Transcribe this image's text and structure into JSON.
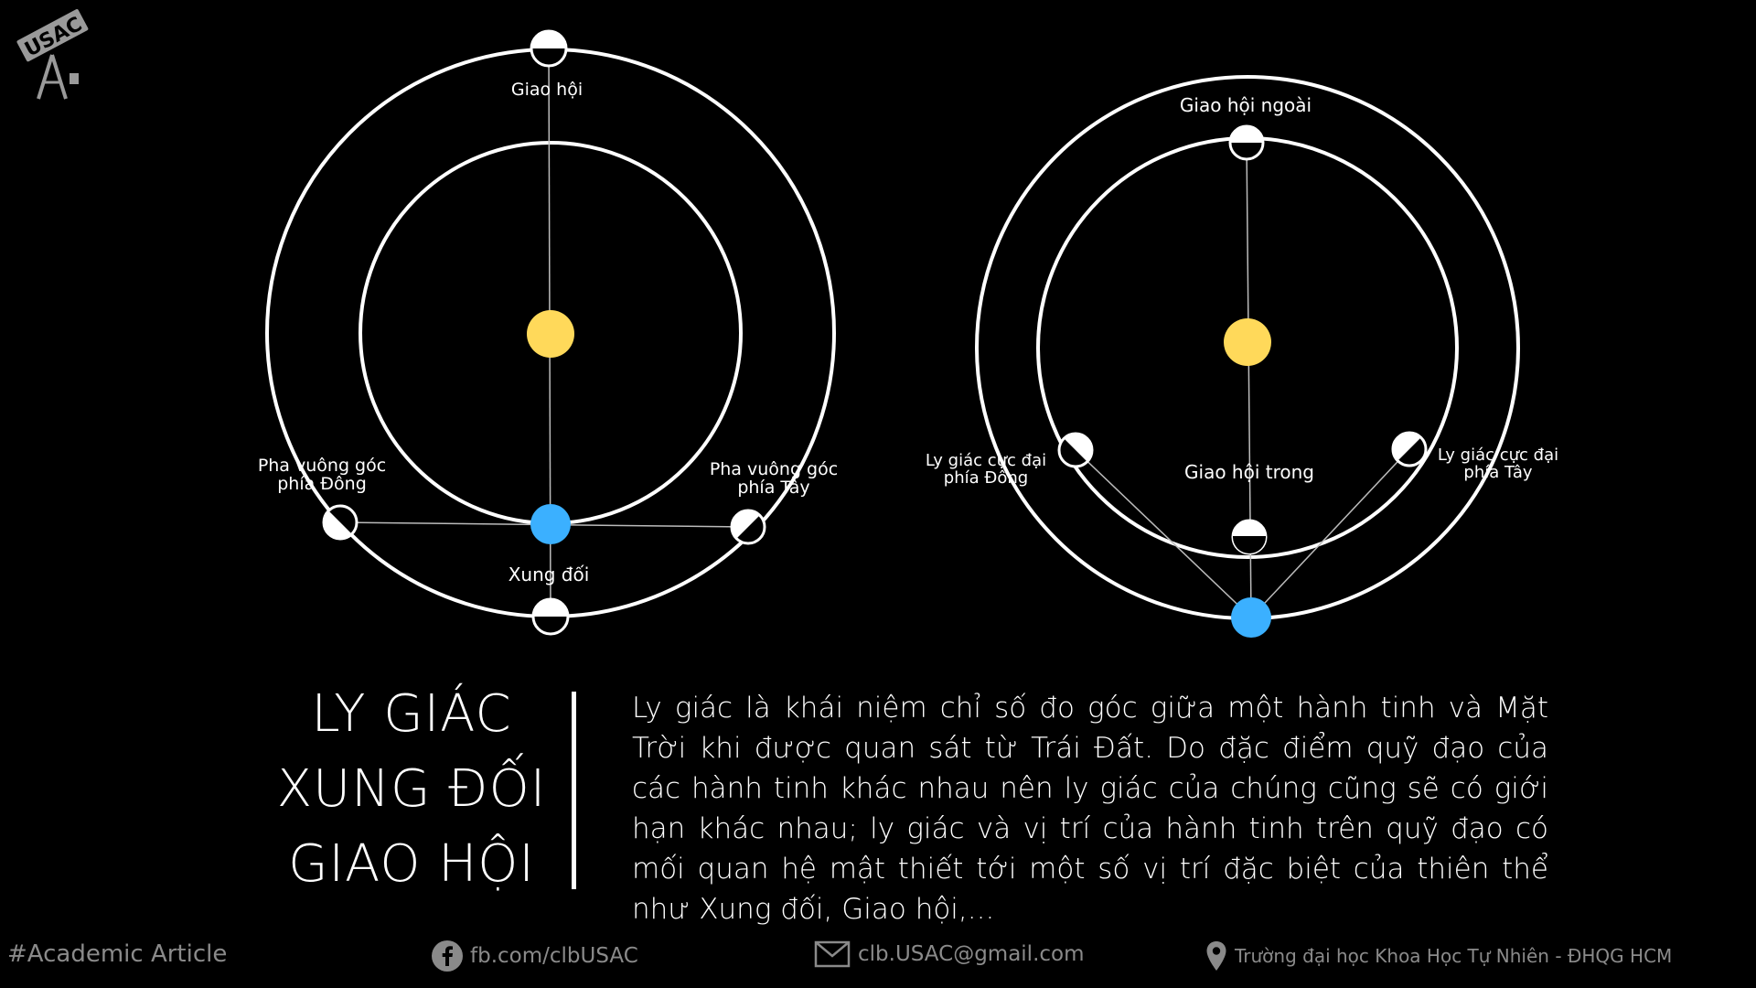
{
  "logo": {
    "text": "USAC",
    "icon": "telescope-logo-icon"
  },
  "diagram_left": {
    "labels": {
      "top": "Giao hội",
      "left_line1": "Pha vuông góc",
      "left_line2": "phía Đông",
      "right_line1": "Pha vuông góc",
      "right_line2": "phía Tây",
      "bottom": "Xung đối"
    }
  },
  "diagram_right": {
    "labels": {
      "top": "Giao hội ngoài",
      "inner": "Giao hội trong",
      "left_line1": "Ly giác cực đại",
      "left_line2": "phía Đông",
      "right_line1": "Ly giác cực đại",
      "right_line2": "phía Tây"
    }
  },
  "colors": {
    "sun": "#FFD95A",
    "earth": "#3BB0FF",
    "orbit": "#FFFFFF",
    "background": "#000000",
    "footer_text": "#8A8A8A"
  },
  "title": {
    "line1": "LY GIÁC",
    "line2": "XUNG ĐỐI",
    "line3": "GIAO HỘI"
  },
  "description": "Ly giác là khái niệm chỉ số đo góc giữa một hành tinh và Mặt Trời khi được quan sát từ Trái Đất. Do đặc điểm quỹ đạo của các hành tinh khác nhau nên ly giác của chúng cũng sẽ có giới hạn khác nhau; ly giác và vị trí của hành tinh trên quỹ đạo có mối quan hệ mật thiết tới một số vị trí đặc biệt của thiên thể như Xung đối, Giao hội,...",
  "footer": {
    "hashtag": "#Academic Article",
    "facebook": "fb.com/clbUSAC",
    "email": "clb.USAC@gmail.com",
    "address": "Trường đại học Khoa Học Tự Nhiên - ĐHQG HCM",
    "icons": [
      "facebook-icon",
      "mail-icon",
      "location-pin-icon"
    ]
  }
}
